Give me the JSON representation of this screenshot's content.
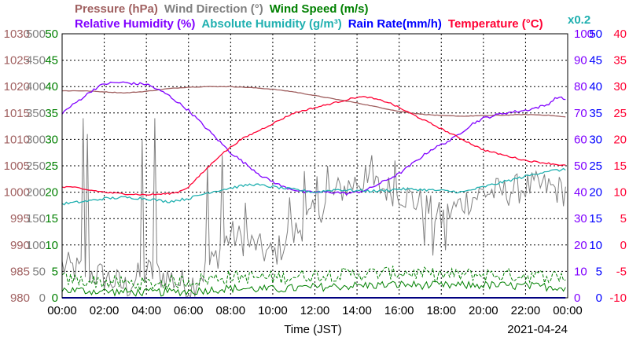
{
  "colors": {
    "pressure": "#a06060",
    "wind_direction": "#808080",
    "wind_speed": "#008000",
    "relative_humidity": "#8000ff",
    "absolute_humidity": "#20b0b0",
    "rain_rate": "#0000ff",
    "temperature": "#ff0033",
    "grid": "#000000",
    "frame": "#000000"
  },
  "chart_data": {
    "type": "line",
    "date_label": "2021-04-24",
    "xlabel": "Time (JST)",
    "x_ticks": [
      "00:00",
      "02:00",
      "04:00",
      "06:00",
      "08:00",
      "10:00",
      "12:00",
      "14:00",
      "16:00",
      "18:00",
      "20:00",
      "22:00",
      "00:00"
    ],
    "grid": true,
    "legend": [
      {
        "key": "pressure",
        "label": "Pressure (hPa)",
        "row": 1
      },
      {
        "key": "wind_direction",
        "label": "Wind Direction (°)",
        "row": 1
      },
      {
        "key": "wind_speed",
        "label": "Wind Speed (m/s)",
        "row": 1
      },
      {
        "key": "relative_humidity",
        "label": "Relative Humidity (%)",
        "row": 2
      },
      {
        "key": "absolute_humidity",
        "label": "Absolute Humidity (g/m³)",
        "row": 2
      },
      {
        "key": "rain_rate",
        "label": "Rain Rate(mm/h)",
        "row": 2
      },
      {
        "key": "temperature",
        "label": "Temperature (°C)",
        "row": 2
      }
    ],
    "rain_scale_note": "x0.2",
    "axes": {
      "pressure": {
        "range": [
          980,
          1030
        ],
        "ticks": [
          "1030",
          "1025",
          "1020",
          "1015",
          "1010",
          "1005",
          "1000",
          "995",
          "990",
          "985",
          "980"
        ]
      },
      "wind_direction": {
        "range": [
          0,
          500
        ],
        "ticks": [
          "500",
          "450",
          "400",
          "350",
          "300",
          "250",
          "200",
          "150",
          "100",
          "50",
          "0"
        ]
      },
      "wind_speed": {
        "range": [
          0,
          50
        ],
        "ticks": [
          "50",
          "45",
          "40",
          "35",
          "30",
          "25",
          "20",
          "15",
          "10",
          "5",
          "0"
        ]
      },
      "relative_humidity": {
        "range": [
          0,
          100
        ],
        "ticks": [
          "100",
          "90",
          "80",
          "70",
          "60",
          "50",
          "40",
          "30",
          "20",
          "10",
          "0"
        ]
      },
      "rain_rate": {
        "range": [
          0,
          50
        ],
        "ticks": [
          "50",
          "45",
          "40",
          "35",
          "30",
          "25",
          "20",
          "15",
          "10",
          "5",
          "0"
        ]
      },
      "temperature": {
        "range": [
          -10,
          40
        ],
        "ticks": [
          "40",
          "35",
          "30",
          "25",
          "20",
          "15",
          "10",
          "5",
          "0",
          "-5",
          "-10"
        ]
      }
    },
    "series": [
      {
        "key": "pressure",
        "axis": "pressure",
        "x": [
          0,
          1,
          2,
          3,
          4,
          5,
          6,
          7,
          8,
          9,
          10,
          11,
          12,
          13,
          14,
          15,
          16,
          17,
          18,
          19,
          20,
          21,
          22,
          23,
          24
        ],
        "y": [
          1019.2,
          1019.2,
          1019.0,
          1018.8,
          1019.1,
          1019.6,
          1019.9,
          1020.0,
          1020.0,
          1019.8,
          1019.5,
          1019.0,
          1018.3,
          1017.6,
          1016.9,
          1016.1,
          1015.3,
          1014.8,
          1014.5,
          1014.4,
          1014.5,
          1014.6,
          1014.7,
          1014.6,
          1014.2
        ]
      },
      {
        "key": "relative_humidity",
        "axis": "relative_humidity",
        "x": [
          0,
          0.5,
          1,
          1.5,
          2,
          2.5,
          3,
          3.5,
          4,
          4.5,
          5,
          5.5,
          6,
          6.5,
          7,
          7.5,
          8,
          8.5,
          9,
          9.5,
          10,
          10.5,
          11,
          11.5,
          12,
          12.5,
          13,
          13.5,
          14,
          14.5,
          15,
          15.5,
          16,
          16.5,
          17,
          17.5,
          18,
          18.5,
          19,
          19.5,
          20,
          20.5,
          21,
          21.5,
          22,
          22.5,
          23,
          23.5,
          24
        ],
        "y": [
          70,
          73,
          76,
          79,
          81,
          81.5,
          81.5,
          81,
          81,
          79,
          77,
          74,
          71,
          67,
          63,
          59,
          55,
          52,
          49,
          46,
          44,
          42,
          41,
          40,
          40,
          40,
          40,
          39.5,
          40,
          41,
          43,
          45,
          47,
          50,
          53,
          56,
          58,
          60,
          63,
          66,
          68,
          69,
          70,
          70.5,
          71,
          72,
          73,
          76,
          75
        ]
      },
      {
        "key": "absolute_humidity",
        "axis": "wind_speed",
        "x": [
          0,
          1,
          2,
          3,
          4,
          5,
          6,
          7,
          8,
          9,
          10,
          11,
          12,
          13,
          14,
          15,
          16,
          17,
          18,
          19,
          20,
          21,
          22,
          23,
          24
        ],
        "y": [
          17.8,
          18.2,
          18.8,
          19.0,
          18.8,
          18.2,
          18.8,
          20.0,
          20.8,
          21.5,
          21.0,
          20.5,
          20.0,
          20.5,
          20.3,
          20.2,
          20.6,
          20.5,
          20.3,
          20.0,
          21.0,
          22.0,
          23.0,
          24.0,
          24.3
        ]
      },
      {
        "key": "temperature",
        "axis": "temperature",
        "x": [
          0,
          0.5,
          1,
          1.5,
          2,
          2.5,
          3,
          3.5,
          4,
          4.5,
          5,
          5.5,
          6,
          6.5,
          7,
          7.5,
          8,
          8.5,
          9,
          9.5,
          10,
          10.5,
          11,
          11.5,
          12,
          12.5,
          13,
          13.5,
          14,
          14.5,
          15,
          15.5,
          16,
          16.5,
          17,
          17.5,
          18,
          18.5,
          19,
          19.5,
          20,
          21,
          22,
          23,
          24
        ],
        "y": [
          11,
          11,
          10.5,
          10.3,
          10,
          9.8,
          9.7,
          9.6,
          9.5,
          9.6,
          9.7,
          10,
          11,
          13,
          15,
          17,
          18.5,
          20,
          21,
          22,
          23,
          24,
          25,
          25.5,
          26,
          26.5,
          27,
          27.5,
          28,
          28,
          27.5,
          27,
          26,
          25,
          24,
          23,
          22,
          21,
          20,
          19,
          18,
          17,
          16,
          15.5,
          15
        ]
      },
      {
        "key": "rain_rate",
        "axis": "rain_rate",
        "x": [
          0,
          24
        ],
        "y": [
          0,
          0
        ]
      }
    ],
    "wind_direction_anchors": {
      "x": [
        0,
        1,
        2,
        3,
        4,
        5,
        6,
        7,
        8,
        9,
        10,
        11,
        12,
        13,
        14,
        15,
        16,
        17,
        18,
        19,
        20,
        21,
        22,
        23,
        24
      ],
      "y": [
        60,
        50,
        40,
        20,
        50,
        40,
        20,
        60,
        120,
        100,
        80,
        120,
        160,
        200,
        220,
        210,
        200,
        180,
        150,
        180,
        200,
        200,
        210,
        210,
        200
      ]
    },
    "wind_direction_spikes": [
      {
        "x": 1.0,
        "y": 340
      },
      {
        "x": 1.2,
        "y": 310
      },
      {
        "x": 3.8,
        "y": 300
      },
      {
        "x": 4.4,
        "y": 340
      },
      {
        "x": 6.9,
        "y": 250
      },
      {
        "x": 7.6,
        "y": 270
      },
      {
        "x": 8.7,
        "y": 180
      },
      {
        "x": 9.2,
        "y": 90
      },
      {
        "x": 10.8,
        "y": 190
      },
      {
        "x": 11.5,
        "y": 240
      },
      {
        "x": 12.1,
        "y": 230
      },
      {
        "x": 12.6,
        "y": 250
      },
      {
        "x": 14.4,
        "y": 250
      },
      {
        "x": 14.7,
        "y": 270
      },
      {
        "x": 15.8,
        "y": 260
      },
      {
        "x": 17.2,
        "y": 240
      }
    ],
    "wind_direction_dips": [
      {
        "x": 16.7,
        "y": 170
      },
      {
        "x": 17.2,
        "y": 100
      },
      {
        "x": 17.6,
        "y": 80
      },
      {
        "x": 18.2,
        "y": 90
      }
    ],
    "wind_speed_profile": {
      "x": [
        0,
        2,
        4,
        6,
        8,
        10,
        12,
        14,
        16,
        18,
        20,
        22,
        24
      ],
      "avg": [
        1.5,
        1.2,
        1.0,
        1.2,
        1.8,
        1.6,
        2.0,
        2.3,
        2.5,
        2.3,
        2.4,
        2.2,
        2.0
      ],
      "gust": [
        3.5,
        3.0,
        2.6,
        3.2,
        4.0,
        3.8,
        4.3,
        4.5,
        4.8,
        4.3,
        4.4,
        4.2,
        4.0
      ]
    }
  }
}
